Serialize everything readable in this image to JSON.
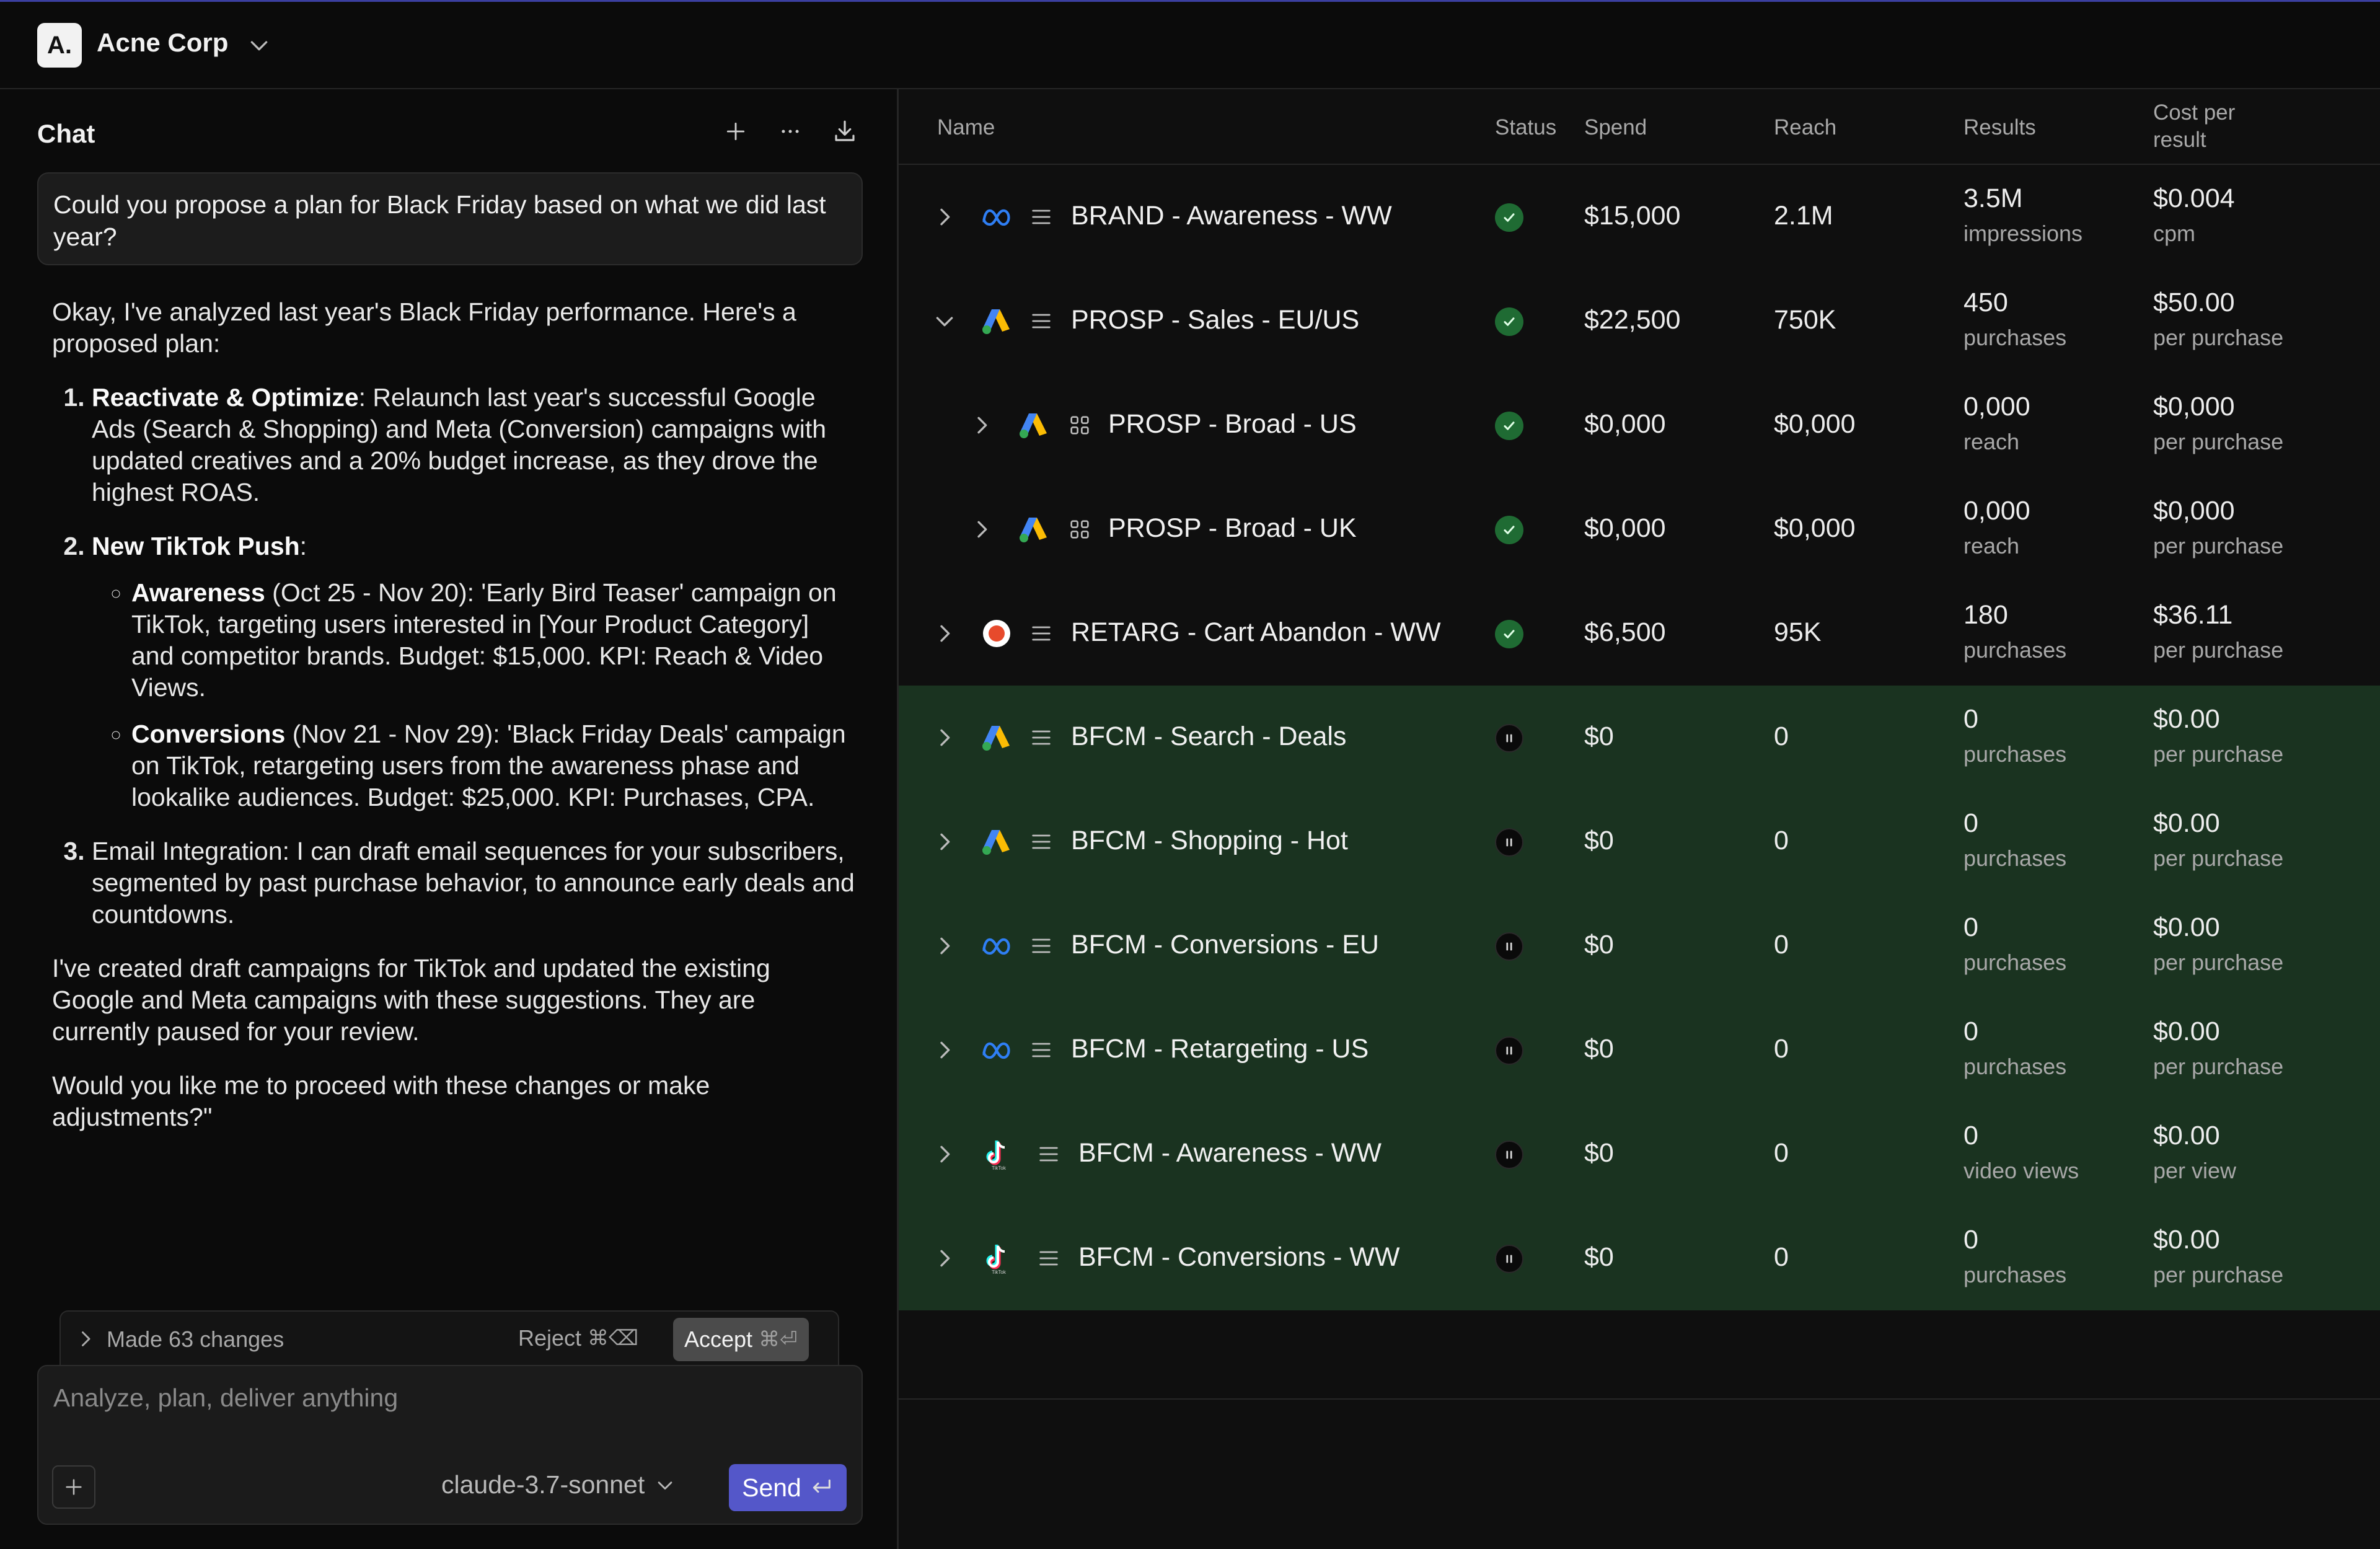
{
  "org": {
    "logo_text": "A.",
    "name": "Acne Corp"
  },
  "chat": {
    "title": "Chat",
    "user_message": "Could you propose a plan for Black Friday based on what we did last year?",
    "reply": {
      "intro": "Okay, I've analyzed last year's Black Friday performance. Here's a proposed plan:",
      "item1_title": "Reactivate & Optimize",
      "item1_text": ": Relaunch last year's successful Google Ads (Search & Shopping) and Meta (Conversion) campaigns with updated creatives and a 20% budget increase, as they drove the highest ROAS.",
      "item2_title": "New TikTok Push",
      "item2_text": ":",
      "sub1_title": "Awareness",
      "sub1_text": " (Oct 25 - Nov 20): 'Early Bird Teaser' campaign on TikTok, targeting users interested in [Your Product Category] and competitor brands. Budget: $15,000. KPI: Reach & Video Views.",
      "sub2_title": "Conversions",
      "sub2_text": " (Nov 21 - Nov 29): 'Black Friday Deals' campaign on TikTok, retargeting users from the awareness phase and lookalike audiences. Budget: $25,000. KPI: Purchases, CPA.",
      "item3_text": "Email Integration: I can draft email sequences for your subscribers, segmented by past purchase behavior, to announce early deals and countdowns.",
      "para2": "I've created draft campaigns for TikTok and updated the existing Google and Meta campaigns with these suggestions. They are currently paused for your review.",
      "para3": "Would you like me to proceed with these changes or make adjustments?\""
    },
    "changes_label": "Made 63 changes",
    "reject_label": "Reject",
    "reject_shortcut": "⌘⌫",
    "accept_label": "Accept",
    "accept_shortcut": "⌘⏎",
    "composer_placeholder": "Analyze, plan, deliver anything",
    "model": "claude-3.7-sonnet",
    "send_label": "Send"
  },
  "table": {
    "columns": {
      "name": "Name",
      "status": "Status",
      "spend": "Spend",
      "reach": "Reach",
      "results": "Results",
      "cost_line1": "Cost per",
      "cost_line2": "result"
    },
    "rows": [
      {
        "name": "BRAND - Awareness - WW",
        "platform": "meta-icon",
        "level": 0,
        "expanded": false,
        "status": "active",
        "spend": "$15,000",
        "reach": "2.1M",
        "results": "3.5M",
        "results_unit": "impressions",
        "cost": "$0.004",
        "cost_unit": "cpm",
        "draft": false
      },
      {
        "name": "PROSP - Sales - EU/US",
        "platform": "google-ads-icon",
        "level": 0,
        "expanded": true,
        "status": "active",
        "spend": "$22,500",
        "reach": "750K",
        "results": "450",
        "results_unit": "purchases",
        "cost": "$50.00",
        "cost_unit": "per purchase",
        "draft": false
      },
      {
        "name": "PROSP - Broad - US",
        "platform": "google-ads-icon",
        "level": 1,
        "expanded": false,
        "status": "active",
        "spend": "$0,000",
        "reach": "$0,000",
        "results": "0,000",
        "results_unit": "reach",
        "cost": "$0,000",
        "cost_unit": "per purchase",
        "draft": false
      },
      {
        "name": "PROSP - Broad - UK",
        "platform": "google-ads-icon",
        "level": 1,
        "expanded": false,
        "status": "active",
        "spend": "$0,000",
        "reach": "$0,000",
        "results": "0,000",
        "results_unit": "reach",
        "cost": "$0,000",
        "cost_unit": "per purchase",
        "draft": false
      },
      {
        "name": "RETARG - Cart Abandon - WW",
        "platform": "target-icon",
        "level": 0,
        "expanded": false,
        "status": "active",
        "spend": "$6,500",
        "reach": "95K",
        "results": "180",
        "results_unit": "purchases",
        "cost": "$36.11",
        "cost_unit": "per purchase",
        "draft": false
      },
      {
        "name": "BFCM - Search - Deals",
        "platform": "google-ads-icon",
        "level": 0,
        "expanded": false,
        "status": "paused",
        "spend": "$0",
        "reach": "0",
        "results": "0",
        "results_unit": "purchases",
        "cost": "$0.00",
        "cost_unit": "per purchase",
        "draft": true
      },
      {
        "name": "BFCM - Shopping - Hot",
        "platform": "google-ads-icon",
        "level": 0,
        "expanded": false,
        "status": "paused",
        "spend": "$0",
        "reach": "0",
        "results": "0",
        "results_unit": "purchases",
        "cost": "$0.00",
        "cost_unit": "per purchase",
        "draft": true
      },
      {
        "name": "BFCM - Conversions - EU",
        "platform": "meta-icon",
        "level": 0,
        "expanded": false,
        "status": "paused",
        "spend": "$0",
        "reach": "0",
        "results": "0",
        "results_unit": "purchases",
        "cost": "$0.00",
        "cost_unit": "per purchase",
        "draft": true
      },
      {
        "name": "BFCM - Retargeting - US",
        "platform": "meta-icon",
        "level": 0,
        "expanded": false,
        "status": "paused",
        "spend": "$0",
        "reach": "0",
        "results": "0",
        "results_unit": "purchases",
        "cost": "$0.00",
        "cost_unit": "per purchase",
        "draft": true
      },
      {
        "name": "BFCM - Awareness - WW",
        "platform": "tiktok-icon",
        "level": 0,
        "expanded": false,
        "status": "paused",
        "spend": "$0",
        "reach": "0",
        "results": "0",
        "results_unit": "video views",
        "cost": "$0.00",
        "cost_unit": "per view",
        "draft": true
      },
      {
        "name": "BFCM - Conversions - WW",
        "platform": "tiktok-icon",
        "level": 0,
        "expanded": false,
        "status": "paused",
        "spend": "$0",
        "reach": "0",
        "results": "0",
        "results_unit": "purchases",
        "cost": "$0.00",
        "cost_unit": "per purchase",
        "draft": true
      }
    ]
  },
  "colors": {
    "accent": "#5457c9",
    "draft_row": "#1a3320",
    "active_status": "#1f6b33",
    "background": "#0b0b0b"
  }
}
